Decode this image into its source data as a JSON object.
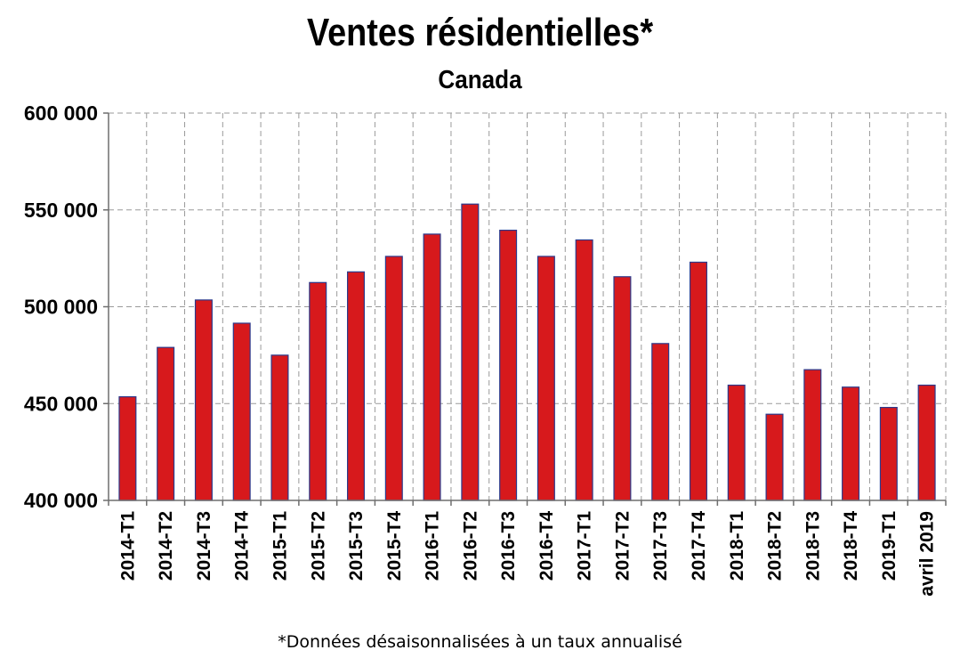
{
  "chart_data": {
    "type": "bar",
    "title": "Ventes résidentielles*",
    "subtitle": "Canada",
    "footnote": "*Données désaisonnalisées à un taux annualisé",
    "categories": [
      "2014-T1",
      "2014-T2",
      "2014-T3",
      "2014-T4",
      "2015-T1",
      "2015-T2",
      "2015-T3",
      "2015-T4",
      "2016-T1",
      "2016-T2",
      "2016-T3",
      "2016-T4",
      "2017-T1",
      "2017-T2",
      "2017-T3",
      "2017-T4",
      "2018-T1",
      "2018-T2",
      "2018-T3",
      "2018-T4",
      "2019-T1",
      "avril 2019"
    ],
    "values": [
      453500,
      479000,
      503500,
      491500,
      475000,
      512500,
      518000,
      526000,
      537500,
      553000,
      539500,
      526000,
      534500,
      515500,
      481000,
      523000,
      459500,
      444500,
      467500,
      458500,
      448000,
      459500
    ],
    "ylim": [
      400000,
      600000
    ],
    "yticks": [
      400000,
      450000,
      500000,
      550000,
      600000
    ],
    "ytick_labels": [
      "400 000",
      "450 000",
      "500 000",
      "550 000",
      "600 000"
    ],
    "grid": true,
    "bar_color": "#d7191c",
    "bar_edge_color": "#2b3a8c"
  }
}
